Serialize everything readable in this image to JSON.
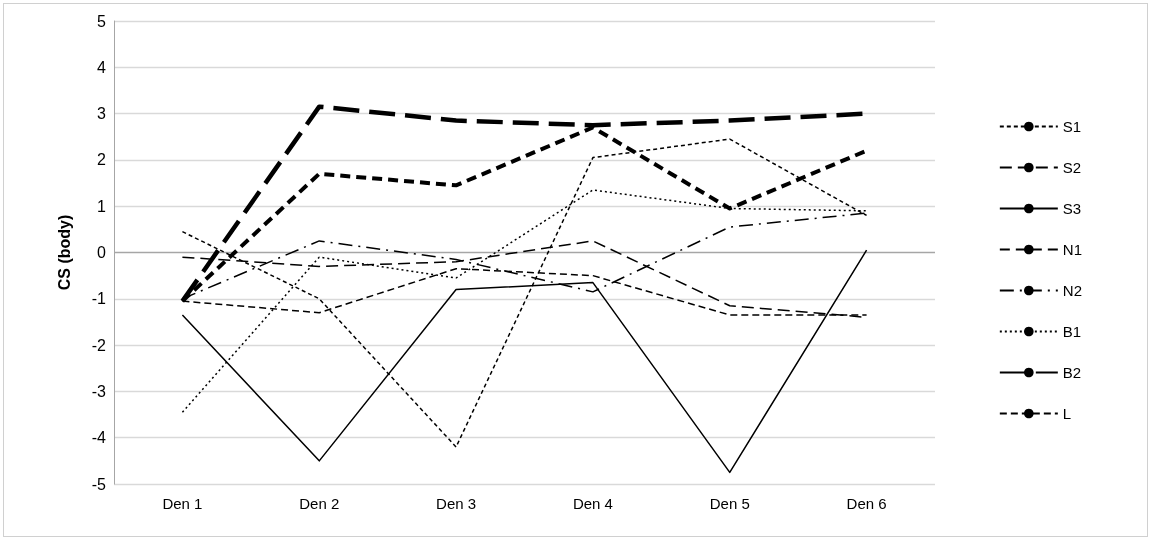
{
  "chart_data": {
    "type": "line",
    "ylabel": "CS (body)",
    "categories": [
      "Den 1",
      "Den 2",
      "Den 3",
      "Den 4",
      "Den 5",
      "Den 6"
    ],
    "series": [
      {
        "name": "S1",
        "color": "#000000",
        "line_style": "dashed",
        "values": [
          0.45,
          -1.0,
          -4.2,
          2.05,
          2.45,
          0.8
        ]
      },
      {
        "name": "S2",
        "color": "#000000",
        "line_style": "dashed",
        "values": [
          -0.1,
          -0.3,
          -0.2,
          0.25,
          -1.15,
          -1.4
        ]
      },
      {
        "name": "S3",
        "color": "#000000",
        "line_style": "solid",
        "values": [
          -1.35,
          -4.5,
          -0.8,
          -0.65,
          -4.75,
          0.05
        ]
      },
      {
        "name": "N1",
        "color": "#000000",
        "line_style": "dashed",
        "values": [
          -1.05,
          1.7,
          1.45,
          2.7,
          0.95,
          2.2
        ]
      },
      {
        "name": "N2",
        "color": "#000000",
        "line_style": "dashed",
        "values": [
          -1.0,
          0.25,
          -0.15,
          -0.85,
          0.55,
          0.85
        ]
      },
      {
        "name": "B1",
        "color": "#000000",
        "line_style": "dotted",
        "values": [
          -3.45,
          -0.1,
          -0.55,
          1.35,
          0.95,
          0.9
        ]
      },
      {
        "name": "B2",
        "color": "#000000",
        "line_style": "dashed",
        "values": [
          -1.05,
          3.15,
          2.85,
          2.75,
          2.85,
          3.0
        ]
      },
      {
        "name": "L",
        "color": "#000000",
        "line_style": "dashed",
        "values": [
          -1.05,
          -1.3,
          -0.35,
          -0.5,
          -1.35,
          -1.35
        ]
      }
    ],
    "ylim": [
      -5,
      5
    ],
    "yticks": [
      -5,
      -4,
      -3,
      -2,
      -1,
      0,
      1,
      2,
      3,
      4,
      5
    ],
    "grid": "y",
    "legend": "right",
    "marker": "none"
  }
}
